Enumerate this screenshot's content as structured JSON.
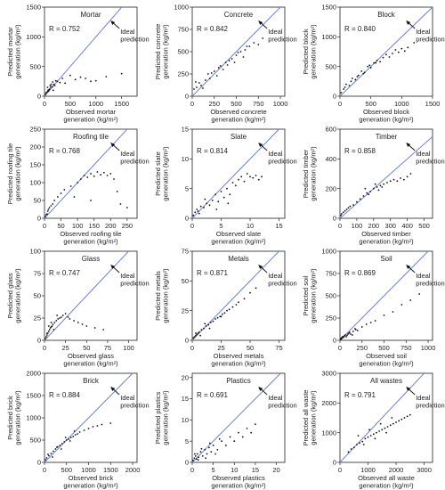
{
  "chart_data": [
    {
      "type": "scatter",
      "title": "Mortar",
      "r_label": "R = 0.752",
      "annotation": "Ideal prediction",
      "xlabel_l1": "Observed mortar",
      "xlabel_l2": "generation (kg/m²)",
      "ylabel_l1": "Predicted mortar",
      "ylabel_l2": "generation (kg/m²)",
      "xlim": [
        0,
        1800
      ],
      "ylim": [
        0,
        1500
      ],
      "xticks": [
        0,
        500,
        1000,
        1500
      ],
      "yticks": [
        0,
        500,
        1000,
        1500
      ],
      "x": [
        20,
        40,
        60,
        80,
        100,
        120,
        150,
        180,
        200,
        250,
        300,
        350,
        400,
        500,
        600,
        700,
        800,
        900,
        1000,
        1200,
        1500,
        60,
        90,
        130,
        170,
        220,
        30,
        70,
        110,
        160
      ],
      "y": [
        30,
        60,
        80,
        90,
        120,
        150,
        160,
        200,
        180,
        250,
        230,
        300,
        220,
        350,
        280,
        320,
        300,
        250,
        260,
        330,
        380,
        150,
        110,
        200,
        100,
        260,
        60,
        100,
        180,
        240
      ]
    },
    {
      "type": "scatter",
      "title": "Concrete",
      "r_label": "R = 0.842",
      "annotation": "Ideal prediction",
      "xlabel_l1": "Observed concrete",
      "xlabel_l2": "generation (kg/m²)",
      "ylabel_l1": "Predicted concrete",
      "ylabel_l2": "generation (kg/m²)",
      "xlim": [
        0,
        1050
      ],
      "ylim": [
        0,
        1000
      ],
      "xticks": [
        0,
        250,
        500,
        750,
        1000
      ],
      "yticks": [
        0,
        250,
        500,
        750,
        1000
      ],
      "x": [
        20,
        50,
        80,
        100,
        150,
        180,
        200,
        250,
        280,
        300,
        350,
        380,
        400,
        450,
        480,
        500,
        550,
        580,
        600,
        650,
        700,
        750,
        800,
        40,
        120,
        220,
        320,
        420,
        520,
        620
      ],
      "y": [
        80,
        100,
        150,
        120,
        180,
        250,
        200,
        280,
        230,
        320,
        300,
        380,
        350,
        420,
        380,
        460,
        500,
        440,
        520,
        560,
        600,
        580,
        650,
        160,
        90,
        260,
        340,
        400,
        490,
        560
      ]
    },
    {
      "type": "scatter",
      "title": "Block",
      "r_label": "R = 0.840",
      "annotation": "Ideal prediction",
      "xlabel_l1": "Observed block",
      "xlabel_l2": "generation (kg/m²)",
      "ylabel_l1": "Predicted block",
      "ylabel_l2": "generation (kg/m²)",
      "xlim": [
        0,
        1500
      ],
      "ylim": [
        0,
        1500
      ],
      "xticks": [
        0,
        500,
        1000,
        1500
      ],
      "yticks": [
        0,
        500,
        1000,
        1500
      ],
      "x": [
        20,
        60,
        100,
        150,
        200,
        250,
        300,
        350,
        400,
        450,
        500,
        550,
        600,
        650,
        700,
        750,
        800,
        850,
        900,
        950,
        1000,
        1050,
        1100,
        1200,
        80,
        180,
        280,
        380,
        480,
        580
      ],
      "y": [
        60,
        120,
        200,
        180,
        300,
        280,
        350,
        420,
        400,
        500,
        480,
        560,
        600,
        580,
        650,
        700,
        660,
        720,
        780,
        740,
        800,
        760,
        820,
        900,
        150,
        250,
        330,
        380,
        520,
        560
      ]
    },
    {
      "type": "scatter",
      "title": "Roofing tile",
      "r_label": "R = 0.768",
      "annotation": "Ideal prediction",
      "xlabel_l1": "Observed roofing tile",
      "xlabel_l2": "generation (kg/m²)",
      "ylabel_l1": "Predicted roofing tile",
      "ylabel_l2": "generation (kg/m²)",
      "xlim": [
        0,
        280
      ],
      "ylim": [
        0,
        250
      ],
      "xticks": [
        0,
        50,
        100,
        150,
        200,
        250
      ],
      "yticks": [
        0,
        50,
        100,
        150,
        200,
        250
      ],
      "x": [
        2,
        5,
        8,
        10,
        12,
        15,
        20,
        25,
        30,
        40,
        50,
        60,
        80,
        100,
        110,
        120,
        130,
        140,
        150,
        160,
        170,
        180,
        190,
        200,
        210,
        220,
        230,
        250,
        90,
        140
      ],
      "y": [
        5,
        10,
        12,
        20,
        25,
        30,
        35,
        40,
        50,
        60,
        70,
        80,
        90,
        100,
        110,
        120,
        115,
        125,
        118,
        130,
        122,
        128,
        120,
        125,
        110,
        75,
        40,
        30,
        60,
        50
      ]
    },
    {
      "type": "scatter",
      "title": "Slate",
      "r_label": "R = 0.814",
      "annotation": "Ideal prediction",
      "xlabel_l1": "Observed slate",
      "xlabel_l2": "generation (kg/m²)",
      "ylabel_l1": "Predicted slate",
      "ylabel_l2": "generation (kg/m²)",
      "xlim": [
        0,
        16
      ],
      "ylim": [
        0,
        15
      ],
      "xticks": [
        0,
        5,
        10,
        15
      ],
      "yticks": [
        0,
        5,
        10,
        15
      ],
      "x": [
        0.2,
        0.5,
        0.8,
        1,
        1.5,
        2,
        2.5,
        3,
        3.5,
        4,
        4.5,
        5,
        5.5,
        6,
        6.5,
        7,
        7.5,
        8,
        8.5,
        9,
        9.5,
        10,
        10.5,
        11,
        11.5,
        12,
        1.2,
        2.2,
        4.2,
        6.2
      ],
      "y": [
        0.5,
        1,
        1.5,
        1.2,
        2,
        1.8,
        2.5,
        2.2,
        3,
        4,
        2.8,
        4.5,
        3.5,
        5,
        4,
        6,
        5.5,
        6.5,
        7,
        6.2,
        7.5,
        7,
        6.8,
        7.2,
        6.5,
        7,
        0.8,
        3.2,
        1.5,
        2.5
      ]
    },
    {
      "type": "scatter",
      "title": "Timber",
      "r_label": "R = 0.858",
      "annotation": "Ideal prediction",
      "xlabel_l1": "Observed timber",
      "xlabel_l2": "generation (kg/m²)",
      "ylabel_l1": "Predicted timber",
      "ylabel_l2": "generation (kg/m²)",
      "xlim": [
        0,
        550
      ],
      "ylim": [
        0,
        600
      ],
      "xticks": [
        0,
        100,
        200,
        300,
        400,
        500
      ],
      "yticks": [
        0,
        200,
        400,
        600
      ],
      "x": [
        5,
        10,
        20,
        30,
        40,
        50,
        60,
        80,
        100,
        120,
        140,
        160,
        180,
        200,
        220,
        240,
        260,
        280,
        300,
        320,
        340,
        360,
        380,
        400,
        420,
        150,
        170,
        210,
        230,
        250
      ],
      "y": [
        20,
        30,
        40,
        50,
        60,
        70,
        80,
        90,
        110,
        130,
        150,
        170,
        180,
        200,
        210,
        220,
        230,
        240,
        250,
        260,
        250,
        270,
        260,
        280,
        300,
        200,
        160,
        230,
        190,
        210
      ]
    },
    {
      "type": "scatter",
      "title": "Glass",
      "r_label": "R = 0.747",
      "annotation": "Ideal prediction",
      "xlabel_l1": "Observed glass",
      "xlabel_l2": "generation (kg/m²)",
      "ylabel_l1": "Predicted glass",
      "ylabel_l2": "generation (kg/m²)",
      "xlim": [
        0,
        110
      ],
      "ylim": [
        0,
        100
      ],
      "xticks": [
        0,
        25,
        50,
        75,
        100
      ],
      "yticks": [
        0,
        25,
        50,
        75,
        100
      ],
      "x": [
        1,
        2,
        3,
        4,
        5,
        6,
        7,
        8,
        9,
        10,
        12,
        14,
        16,
        18,
        20,
        22,
        25,
        28,
        30,
        35,
        40,
        45,
        50,
        60,
        70,
        3,
        5,
        8,
        11,
        15
      ],
      "y": [
        2,
        4,
        6,
        8,
        10,
        12,
        14,
        15,
        16,
        18,
        20,
        22,
        24,
        25,
        26,
        28,
        30,
        26,
        24,
        22,
        20,
        18,
        16,
        14,
        12,
        8,
        16,
        20,
        12,
        28
      ]
    },
    {
      "type": "scatter",
      "title": "Metals",
      "r_label": "R = 0.871",
      "annotation": "Ideal prediction",
      "xlabel_l1": "Observed metals",
      "xlabel_l2": "generation (kg/m²)",
      "ylabel_l1": "Predicted metals",
      "ylabel_l2": "generation (kg/m²)",
      "xlim": [
        0,
        80
      ],
      "ylim": [
        0,
        75
      ],
      "xticks": [
        0,
        25,
        50,
        75
      ],
      "yticks": [
        0,
        25,
        50,
        75
      ],
      "x": [
        1,
        2,
        3,
        4,
        5,
        6,
        8,
        10,
        12,
        14,
        16,
        18,
        20,
        22,
        24,
        26,
        28,
        30,
        32,
        35,
        38,
        40,
        45,
        50,
        55,
        3,
        7,
        11,
        15,
        25
      ],
      "y": [
        2,
        3,
        4,
        5,
        6,
        7,
        9,
        10,
        12,
        13,
        15,
        16,
        18,
        19,
        20,
        22,
        23,
        25,
        26,
        28,
        30,
        32,
        35,
        40,
        44,
        6,
        4,
        14,
        10,
        20
      ]
    },
    {
      "type": "scatter",
      "title": "Soil",
      "r_label": "R = 0.869",
      "annotation": "Ideal prediction",
      "xlabel_l1": "Observed soil",
      "xlabel_l2": "generation (kg/m²)",
      "ylabel_l1": "Predicted soil",
      "ylabel_l2": "generation (kg/m²)",
      "xlim": [
        0,
        1050
      ],
      "ylim": [
        0,
        1000
      ],
      "xticks": [
        0,
        250,
        500,
        750,
        1000
      ],
      "yticks": [
        0,
        250,
        500,
        750,
        1000
      ],
      "x": [
        5,
        10,
        15,
        20,
        30,
        40,
        50,
        60,
        80,
        100,
        120,
        150,
        180,
        200,
        250,
        300,
        350,
        400,
        500,
        600,
        700,
        800,
        900,
        25,
        45,
        70,
        90,
        110,
        140,
        170
      ],
      "y": [
        10,
        20,
        15,
        30,
        40,
        35,
        50,
        60,
        55,
        80,
        70,
        100,
        120,
        110,
        150,
        180,
        200,
        220,
        280,
        320,
        400,
        450,
        520,
        25,
        45,
        40,
        70,
        90,
        60,
        130
      ]
    },
    {
      "type": "scatter",
      "title": "Brick",
      "r_label": "R = 0.884",
      "annotation": "Ideal prediction",
      "xlabel_l1": "Observed brick",
      "xlabel_l2": "generation (kg/m²)",
      "ylabel_l1": "Predicted brick",
      "ylabel_l2": "generation (kg/m²)",
      "xlim": [
        0,
        2100
      ],
      "ylim": [
        0,
        2000
      ],
      "xticks": [
        0,
        500,
        1000,
        1500,
        2000
      ],
      "yticks": [
        0,
        500,
        1000,
        1500,
        2000
      ],
      "x": [
        20,
        50,
        100,
        150,
        200,
        250,
        300,
        350,
        400,
        450,
        500,
        550,
        600,
        650,
        700,
        750,
        800,
        900,
        1000,
        1100,
        1200,
        1300,
        1500,
        80,
        180,
        280,
        380,
        480,
        580,
        680
      ],
      "y": [
        60,
        100,
        150,
        200,
        250,
        300,
        350,
        380,
        420,
        460,
        500,
        520,
        560,
        580,
        620,
        640,
        680,
        720,
        760,
        800,
        820,
        850,
        880,
        180,
        120,
        340,
        300,
        560,
        480,
        700
      ]
    },
    {
      "type": "scatter",
      "title": "Plastics",
      "r_label": "R = 0.691",
      "annotation": "Ideal prediction",
      "xlabel_l1": "Observed plastics",
      "xlabel_l2": "generation (kg/m²)",
      "ylabel_l1": "Predicted plastics",
      "ylabel_l2": "generation (kg/m²)",
      "xlim": [
        0,
        22
      ],
      "ylim": [
        0,
        21
      ],
      "xticks": [
        0,
        5,
        10,
        15,
        20
      ],
      "yticks": [
        0,
        5,
        10,
        15,
        20
      ],
      "x": [
        0.2,
        0.5,
        0.8,
        1,
        1.2,
        1.5,
        2,
        2.5,
        3,
        3.5,
        4,
        4.5,
        5,
        6,
        7,
        8,
        9,
        10,
        11,
        12,
        13,
        14,
        15,
        0.6,
        1.4,
        2.2,
        3.2,
        4.2,
        5.5,
        6.5
      ],
      "y": [
        0.5,
        1,
        1.5,
        0.8,
        2,
        1.2,
        2.5,
        1.5,
        3,
        2,
        3.5,
        2.5,
        4,
        3,
        5,
        4,
        6,
        5,
        7,
        6,
        8,
        7,
        9,
        2,
        0.6,
        3.2,
        1,
        4.5,
        2,
        5.5
      ]
    },
    {
      "type": "scatter",
      "title": "All wastes",
      "r_label": "R = 0.791",
      "annotation": "Ideal prediction",
      "xlabel_l1": "Observed all waste",
      "xlabel_l2": "generation (kg/m²)",
      "ylabel_l1": "Predicted all waste",
      "ylabel_l2": "generation (kg/m²)",
      "xlim": [
        0,
        3300
      ],
      "ylim": [
        0,
        3000
      ],
      "xticks": [
        0,
        1000,
        2000,
        3000
      ],
      "yticks": [
        0,
        1000,
        2000,
        3000
      ],
      "x": [
        300,
        400,
        500,
        600,
        700,
        800,
        900,
        1000,
        1100,
        1200,
        1300,
        1400,
        1500,
        1600,
        1700,
        1800,
        1900,
        2000,
        2100,
        2200,
        2300,
        2400,
        2500,
        650,
        850,
        1050,
        1250,
        1450,
        1650,
        1850
      ],
      "y": [
        350,
        450,
        500,
        600,
        650,
        700,
        800,
        850,
        900,
        950,
        1000,
        1050,
        1100,
        1150,
        1200,
        1250,
        1300,
        1350,
        1400,
        1450,
        1500,
        1550,
        1600,
        900,
        600,
        1100,
        800,
        1300,
        1000,
        1500
      ]
    }
  ]
}
